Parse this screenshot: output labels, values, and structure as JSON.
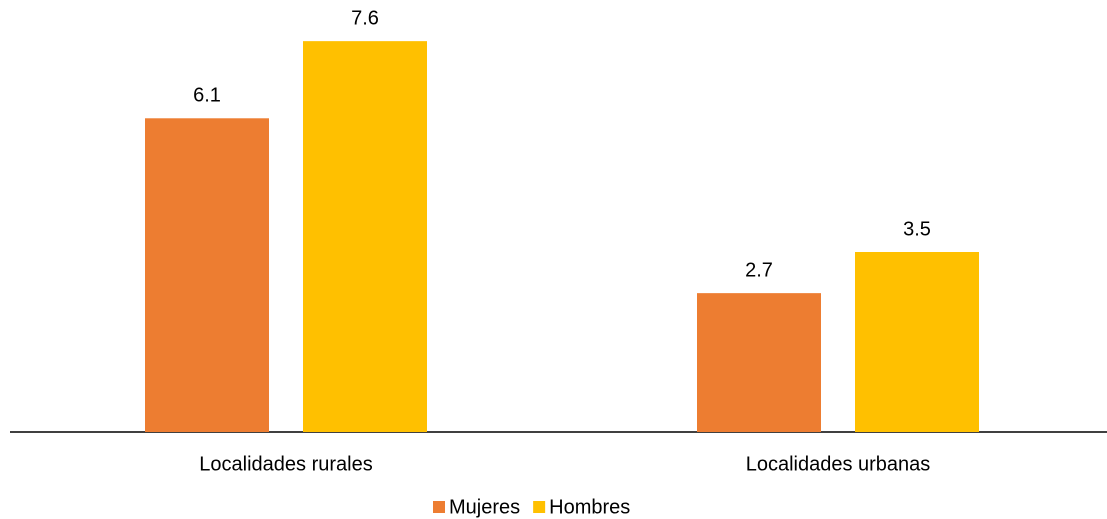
{
  "chart_data": {
    "type": "bar",
    "categories": [
      "Localidades rurales",
      "Localidades urbanas"
    ],
    "series": [
      {
        "name": "Mujeres",
        "color": "#ed7d31",
        "values": [
          6.1,
          2.7
        ]
      },
      {
        "name": "Hombres",
        "color": "#ffc000",
        "values": [
          7.6,
          3.5
        ]
      }
    ],
    "ylim": [
      0,
      8.4
    ],
    "legend": "bottom"
  }
}
